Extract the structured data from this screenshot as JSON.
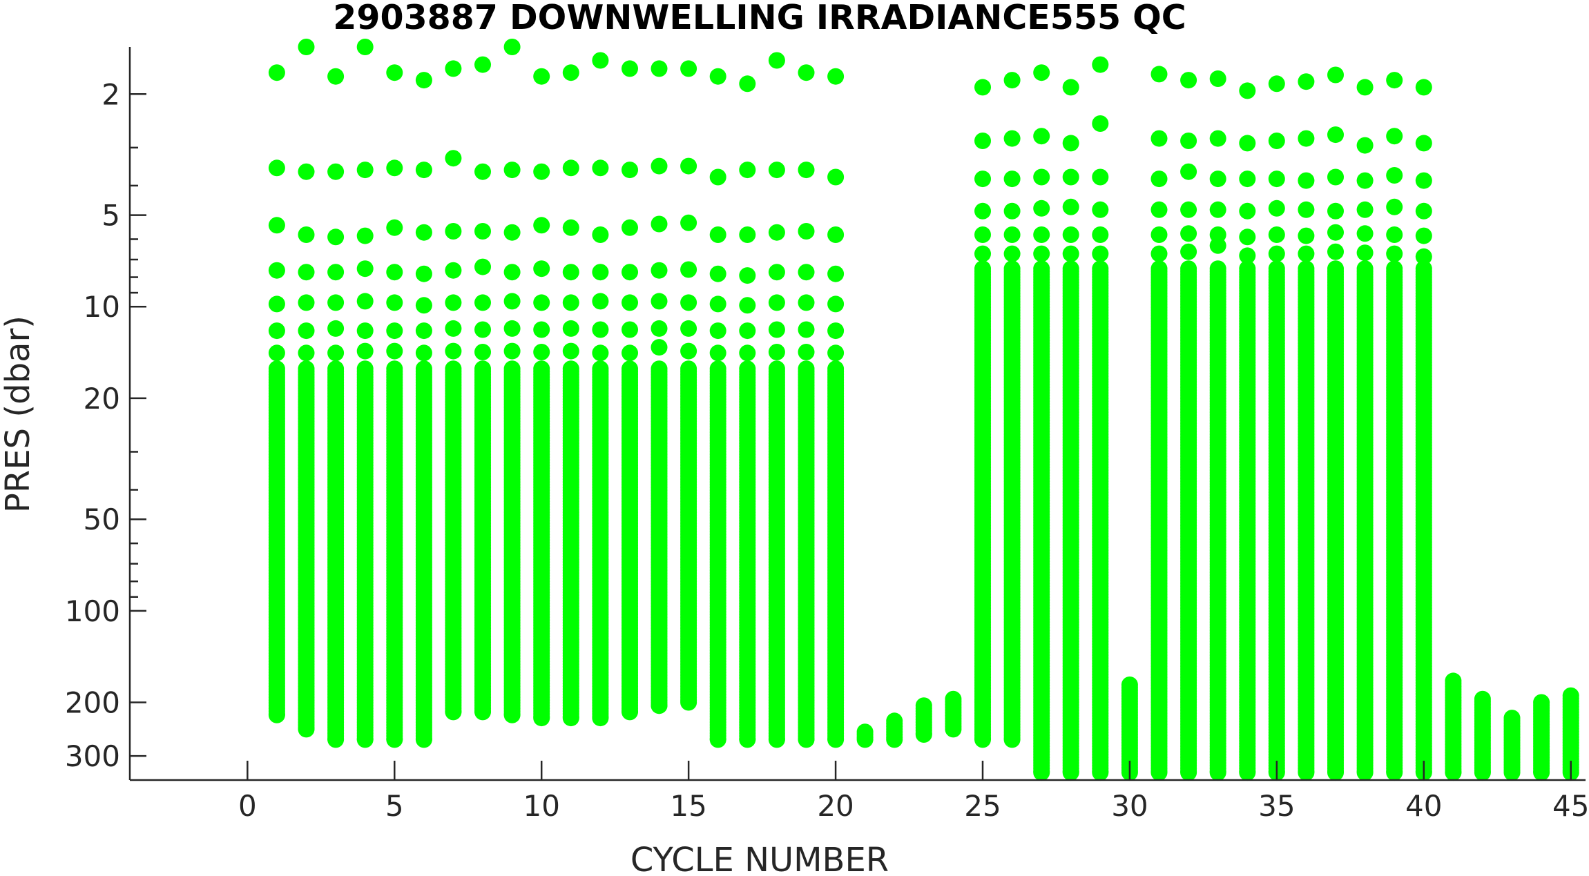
{
  "chart_data": {
    "type": "scatter",
    "title": "2903887  DOWNWELLING IRRADIANCE555 QC",
    "xlabel": "CYCLE NUMBER",
    "ylabel": "PRES (dbar)",
    "xlim": [
      -4,
      45.5
    ],
    "ylim": [
      1.4,
      360
    ],
    "y_scale": "log",
    "y_reversed": true,
    "grid": false,
    "marker_color": "#00ff00",
    "x_ticks": [
      0,
      5,
      10,
      15,
      20,
      25,
      30,
      35,
      40,
      45
    ],
    "x_tick_labels": [
      "0",
      "5",
      "10",
      "15",
      "20",
      "25",
      "30",
      "35",
      "40",
      "45"
    ],
    "y_ticks": [
      2,
      5,
      10,
      20,
      50,
      100,
      200,
      300
    ],
    "y_tick_labels": [
      "2",
      "5",
      "10",
      "20",
      "50",
      "100",
      "200",
      "300"
    ],
    "series": [
      {
        "profiles": [
          {
            "cycle": 1,
            "top_points": [
              1.7,
              3.5,
              5.4,
              7.6,
              9.8,
              12,
              14.2
            ],
            "continuous_from": 16,
            "max_pres": 220
          },
          {
            "cycle": 2,
            "top_points": [
              1.4,
              3.6,
              5.8,
              7.7,
              9.7,
              12,
              14.2
            ],
            "continuous_from": 16,
            "max_pres": 245
          },
          {
            "cycle": 3,
            "top_points": [
              1.75,
              3.6,
              5.9,
              7.7,
              9.7,
              11.8,
              14.2
            ],
            "continuous_from": 16,
            "max_pres": 265
          },
          {
            "cycle": 4,
            "top_points": [
              1.4,
              3.55,
              5.85,
              7.5,
              9.6,
              12,
              14
            ],
            "continuous_from": 16,
            "max_pres": 265
          },
          {
            "cycle": 5,
            "top_points": [
              1.7,
              3.5,
              5.5,
              7.7,
              9.7,
              12,
              14
            ],
            "continuous_from": 16,
            "max_pres": 265
          },
          {
            "cycle": 6,
            "top_points": [
              1.8,
              3.55,
              5.7,
              7.8,
              9.9,
              12,
              14.2
            ],
            "continuous_from": 16,
            "max_pres": 265
          },
          {
            "cycle": 7,
            "top_points": [
              1.65,
              3.25,
              5.65,
              7.6,
              9.7,
              11.8,
              14
            ],
            "continuous_from": 16,
            "max_pres": 215
          },
          {
            "cycle": 8,
            "top_points": [
              1.6,
              3.6,
              5.65,
              7.4,
              9.7,
              11.9,
              14.1
            ],
            "continuous_from": 16,
            "max_pres": 215
          },
          {
            "cycle": 9,
            "top_points": [
              1.4,
              3.55,
              5.7,
              7.7,
              9.6,
              11.8,
              14
            ],
            "continuous_from": 16,
            "max_pres": 220
          },
          {
            "cycle": 10,
            "top_points": [
              1.75,
              3.6,
              5.4,
              7.5,
              9.7,
              11.9,
              14.1
            ],
            "continuous_from": 16,
            "max_pres": 225
          },
          {
            "cycle": 11,
            "top_points": [
              1.7,
              3.5,
              5.5,
              7.7,
              9.7,
              11.8,
              14
            ],
            "continuous_from": 16,
            "max_pres": 225
          },
          {
            "cycle": 12,
            "top_points": [
              1.55,
              3.5,
              5.8,
              7.7,
              9.6,
              11.9,
              14.2
            ],
            "continuous_from": 16,
            "max_pres": 225
          },
          {
            "cycle": 13,
            "top_points": [
              1.65,
              3.55,
              5.5,
              7.7,
              9.7,
              11.9,
              14.2
            ],
            "continuous_from": 16,
            "max_pres": 215
          },
          {
            "cycle": 14,
            "top_points": [
              1.65,
              3.45,
              5.35,
              7.6,
              9.6,
              11.8,
              13.6
            ],
            "continuous_from": 16,
            "max_pres": 205
          },
          {
            "cycle": 15,
            "top_points": [
              1.65,
              3.45,
              5.3,
              7.55,
              9.7,
              11.8,
              14
            ],
            "continuous_from": 16,
            "max_pres": 200
          },
          {
            "cycle": 16,
            "top_points": [
              1.75,
              3.75,
              5.8,
              7.8,
              9.8,
              12,
              14.2
            ],
            "continuous_from": 16,
            "max_pres": 265
          },
          {
            "cycle": 17,
            "top_points": [
              1.85,
              3.55,
              5.8,
              7.9,
              9.9,
              12,
              14.2
            ],
            "continuous_from": 16,
            "max_pres": 265
          },
          {
            "cycle": 18,
            "top_points": [
              1.55,
              3.55,
              5.7,
              7.7,
              9.7,
              11.9,
              14.1
            ],
            "continuous_from": 16,
            "max_pres": 265
          },
          {
            "cycle": 19,
            "top_points": [
              1.7,
              3.55,
              5.65,
              7.7,
              9.7,
              11.9,
              14.1
            ],
            "continuous_from": 16,
            "max_pres": 265
          },
          {
            "cycle": 20,
            "top_points": [
              1.75,
              3.75,
              5.8,
              7.8,
              9.8,
              12,
              14.2
            ],
            "continuous_from": 16,
            "max_pres": 265
          },
          {
            "cycle": 21,
            "top_points": [],
            "continuous_from": 250,
            "max_pres": 265
          },
          {
            "cycle": 22,
            "top_points": [],
            "continuous_from": 230,
            "max_pres": 265
          },
          {
            "cycle": 23,
            "top_points": [],
            "continuous_from": 205,
            "max_pres": 255
          },
          {
            "cycle": 24,
            "top_points": [],
            "continuous_from": 195,
            "max_pres": 245
          },
          {
            "cycle": 25,
            "top_points": [
              1.9,
              2.85,
              3.8,
              4.85,
              5.8,
              6.7
            ],
            "continuous_from": 7.5,
            "max_pres": 265
          },
          {
            "cycle": 26,
            "top_points": [
              1.8,
              2.8,
              3.8,
              4.85,
              5.8,
              6.7
            ],
            "continuous_from": 7.5,
            "max_pres": 265
          },
          {
            "cycle": 27,
            "top_points": [
              1.7,
              2.75,
              3.75,
              4.75,
              5.8,
              6.7
            ],
            "continuous_from": 7.5,
            "max_pres": 340
          },
          {
            "cycle": 28,
            "top_points": [
              1.9,
              2.9,
              3.75,
              4.7,
              5.8,
              6.7
            ],
            "continuous_from": 7.5,
            "max_pres": 340
          },
          {
            "cycle": 29,
            "top_points": [
              1.6,
              2.5,
              3.75,
              4.8,
              5.8,
              6.7
            ],
            "continuous_from": 7.5,
            "max_pres": 340
          },
          {
            "cycle": 30,
            "top_points": [],
            "continuous_from": 175,
            "max_pres": 340
          },
          {
            "cycle": 31,
            "top_points": [
              1.72,
              2.8,
              3.8,
              4.8,
              5.8,
              6.7
            ],
            "continuous_from": 7.5,
            "max_pres": 340
          },
          {
            "cycle": 32,
            "top_points": [
              1.8,
              2.85,
              3.6,
              4.8,
              5.75,
              6.6
            ],
            "continuous_from": 7.5,
            "max_pres": 340
          },
          {
            "cycle": 33,
            "top_points": [
              1.78,
              2.8,
              3.8,
              4.8,
              5.8,
              6.3
            ],
            "continuous_from": 7.5,
            "max_pres": 340
          },
          {
            "cycle": 34,
            "top_points": [
              1.95,
              2.9,
              3.8,
              4.85,
              5.9,
              6.8
            ],
            "continuous_from": 7.5,
            "max_pres": 340
          },
          {
            "cycle": 35,
            "top_points": [
              1.85,
              2.85,
              3.8,
              4.75,
              5.8,
              6.7
            ],
            "continuous_from": 7.5,
            "max_pres": 340
          },
          {
            "cycle": 36,
            "top_points": [
              1.82,
              2.8,
              3.85,
              4.8,
              5.85,
              6.7
            ],
            "continuous_from": 7.5,
            "max_pres": 340
          },
          {
            "cycle": 37,
            "top_points": [
              1.73,
              2.72,
              3.75,
              4.85,
              5.7,
              6.6
            ],
            "continuous_from": 7.5,
            "max_pres": 340
          },
          {
            "cycle": 38,
            "top_points": [
              1.9,
              2.95,
              3.85,
              4.8,
              5.75,
              6.65
            ],
            "continuous_from": 7.5,
            "max_pres": 340
          },
          {
            "cycle": 39,
            "top_points": [
              1.8,
              2.75,
              3.7,
              4.7,
              5.8,
              6.7
            ],
            "continuous_from": 7.5,
            "max_pres": 340
          },
          {
            "cycle": 40,
            "top_points": [
              1.9,
              2.9,
              3.85,
              4.85,
              5.85,
              6.85
            ],
            "continuous_from": 7.5,
            "max_pres": 340
          },
          {
            "cycle": 41,
            "top_points": [],
            "continuous_from": 170,
            "max_pres": 340
          },
          {
            "cycle": 42,
            "top_points": [],
            "continuous_from": 195,
            "max_pres": 340
          },
          {
            "cycle": 43,
            "top_points": [],
            "continuous_from": 225,
            "max_pres": 340
          },
          {
            "cycle": 44,
            "top_points": [],
            "continuous_from": 200,
            "max_pres": 340
          },
          {
            "cycle": 45,
            "top_points": [],
            "continuous_from": 190,
            "max_pres": 340
          }
        ]
      }
    ]
  }
}
